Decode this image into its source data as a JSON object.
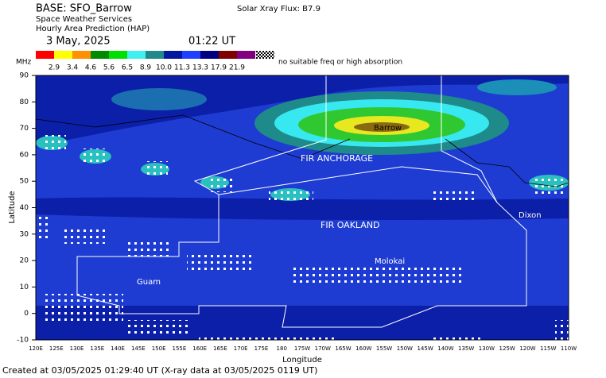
{
  "header": {
    "base": "BASE: SFO_Barrow",
    "service": "Space Weather Services",
    "product": "Hourly Area Prediction (HAP)",
    "date": "3 May, 2025",
    "time": "01:22 UT",
    "flux": "Solar Xray Flux: B7.9"
  },
  "legend": {
    "unit": "MHz",
    "labels": [
      "2.9",
      "3.4",
      "4.6",
      "5.6",
      "6.5",
      "8.9",
      "10.0",
      "11.3",
      "13.3",
      "17.9",
      "21.9"
    ],
    "no_freq": "no suitable freq or high absorption"
  },
  "axes": {
    "y_title": "Latitude",
    "x_title": "Longitude",
    "lat_labels": [
      "90",
      "80",
      "70",
      "60",
      "50",
      "40",
      "30",
      "20",
      "10",
      "0",
      "-10"
    ],
    "lon_labels": [
      "120E",
      "125E",
      "130E",
      "135E",
      "140E",
      "145E",
      "150E",
      "155E",
      "160E",
      "165E",
      "170E",
      "175E",
      "180",
      "175W",
      "170W",
      "165W",
      "160W",
      "155W",
      "150W",
      "145W",
      "140W",
      "135W",
      "130W",
      "125W",
      "120W",
      "115W",
      "110W"
    ]
  },
  "map_labels": {
    "barrow": "Barrow",
    "anchorage": "FIR ANCHORAGE",
    "oakland": "FIR OAKLAND",
    "guam": "Guam",
    "dixon": "Dixon",
    "molokai": "Molokai"
  },
  "footer": "Created at 03/05/2025 01:29:40 UT (X-ray data at 03/05/2025 0119 UT)"
}
